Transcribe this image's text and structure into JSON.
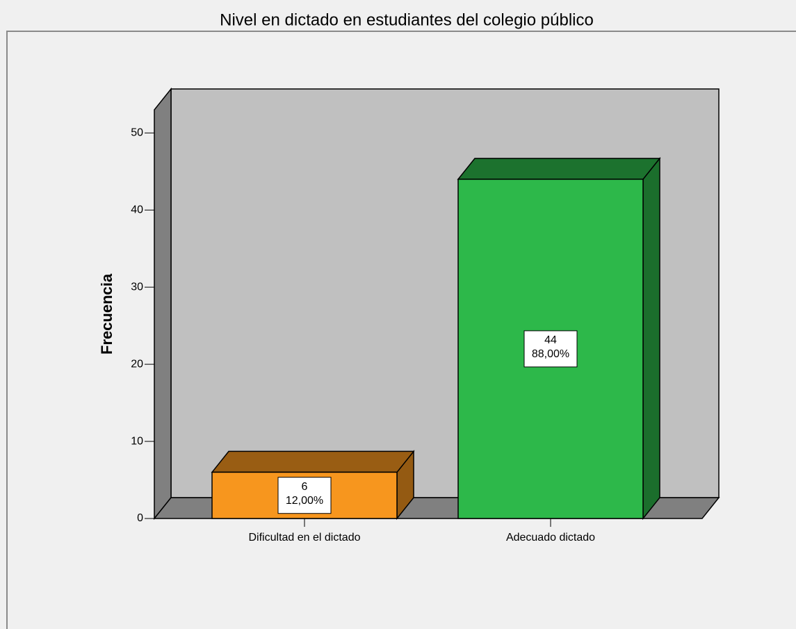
{
  "chart_data": {
    "type": "bar3d",
    "title": "Nivel en dictado en estudiantes del colegio público",
    "y_label": "Frecuencia",
    "categories": [
      "Dificultad en el dictado",
      "Adecuado dictado"
    ],
    "values": [
      6,
      44
    ],
    "percent_values": [
      12,
      88
    ],
    "percent_labels": [
      "12,00%",
      "88,00%"
    ],
    "colors": [
      "#f7961e",
      "#2db84a"
    ],
    "ylim": [
      0,
      53
    ],
    "yticks": [
      0,
      10,
      20,
      30,
      40,
      50
    ]
  }
}
